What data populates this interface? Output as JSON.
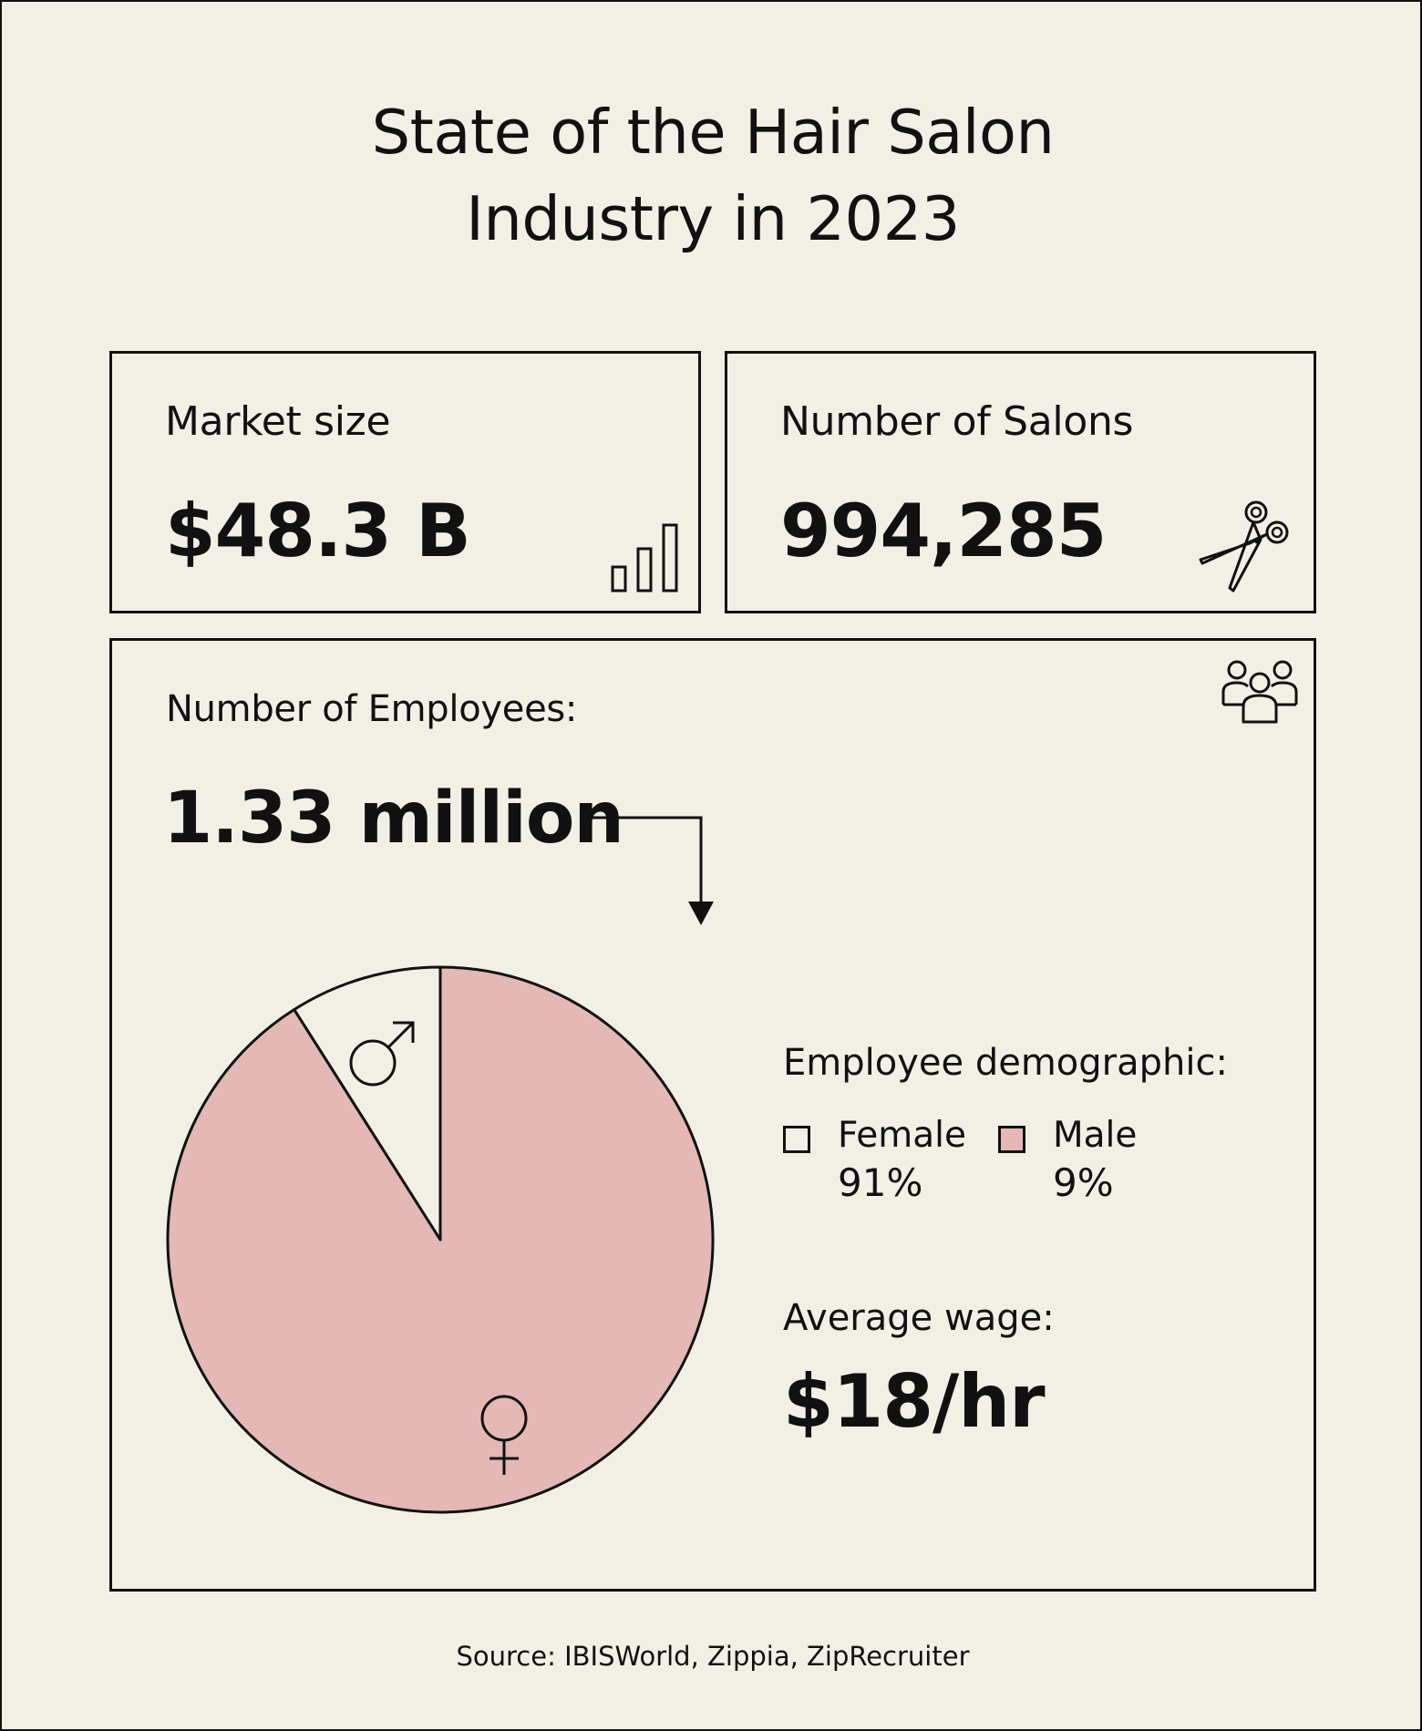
{
  "title": {
    "line1": "State of the Hair Salon",
    "line2": "Industry in 2023"
  },
  "cards": {
    "market": {
      "label": "Market size",
      "value": "$48.3 B",
      "icon": "bar-chart-icon"
    },
    "salons": {
      "label": "Number of Salons",
      "value": "994,285",
      "icon": "scissors-icon"
    }
  },
  "employees": {
    "label": "Number of Employees:",
    "value": "1.33 million",
    "icon": "people-group-icon",
    "demographic_label": "Employee demographic:",
    "wage_label": "Average wage:",
    "wage_value": "$18/hr"
  },
  "chart_data": {
    "type": "pie",
    "series": [
      {
        "name": "Female",
        "value": 91,
        "label": "91%",
        "color": "#e3b8b5",
        "symbol": "female-symbol-icon"
      },
      {
        "name": "Male",
        "value": 9,
        "label": "9%",
        "color": "#f2f0e5",
        "symbol": "male-symbol-icon"
      }
    ],
    "legend": {
      "title": "Employee demographic:",
      "placement": "right"
    }
  },
  "colors": {
    "background": "#f2f0e5",
    "ink": "#111111",
    "accent_pink": "#e3b8b5"
  },
  "source": "Source: IBISWorld, Zippia, ZipRecruiter"
}
